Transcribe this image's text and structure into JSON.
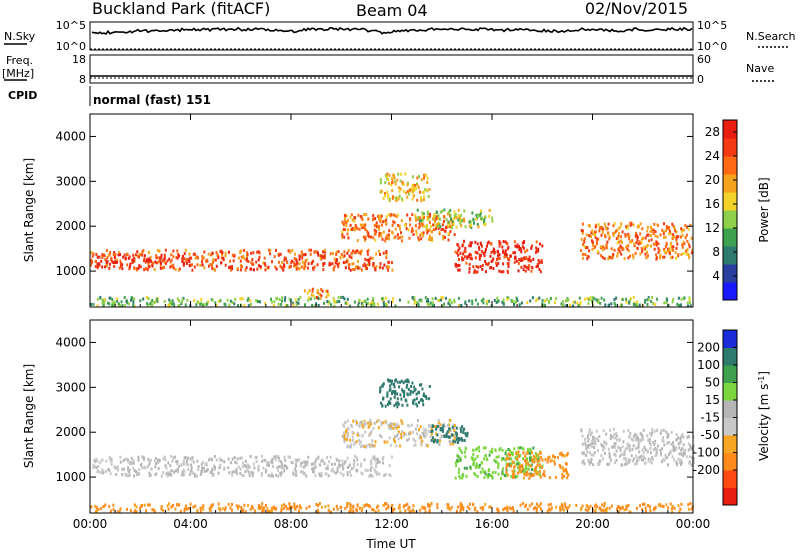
{
  "header": {
    "station": "Buckland Park (fitACF)",
    "beam": "Beam 04",
    "date": "02/Nov/2015"
  },
  "summary_panels": {
    "nsky_label": "N.Sky",
    "nsearch_label": "N.Search",
    "noise_ticks": [
      "10^5",
      "10^0"
    ],
    "freq_label": "Freq.",
    "freq_unit": "[MHz]",
    "freq_ticks": [
      "18",
      "8"
    ],
    "nave_label": "Nave",
    "nave_ticks": [
      "60",
      "0"
    ],
    "cpid_label": "CPID",
    "cpid_value": "normal (fast) 151"
  },
  "colors": {
    "power": [
      "#1a1aff",
      "#2a3f9e",
      "#2e7a6e",
      "#3fa050",
      "#8ed04a",
      "#f2d22b",
      "#f5a21c",
      "#ff6a12",
      "#f43a12",
      "#e81e10"
    ],
    "velocity": [
      "#e81e10",
      "#ff4a12",
      "#ff8c1a",
      "#f5a623",
      "#c8c8c8",
      "#b6b6b6",
      "#7cd640",
      "#3fa050",
      "#2e7a6e",
      "#1b2bd8"
    ]
  },
  "chart_data": [
    {
      "type": "heatmap",
      "quantity": "Power",
      "xlabel": "Time UT",
      "ylabel": "Slant Range [km]",
      "x_ticks": [
        "00:00",
        "04:00",
        "08:00",
        "12:00",
        "16:00",
        "20:00",
        "00:00"
      ],
      "y_ticks": [
        "1000",
        "2000",
        "3000",
        "4000"
      ],
      "y_tick_values": [
        1000,
        2000,
        3000,
        4000
      ],
      "xlim": [
        0,
        24
      ],
      "ylim": [
        200,
        4500
      ],
      "colorbar": {
        "label": "Power [dB]",
        "ticks": [
          "4",
          "8",
          "12",
          "16",
          "20",
          "24",
          "28"
        ],
        "range": [
          0,
          30
        ]
      },
      "echo_regions": [
        {
          "t": [
            0,
            12
          ],
          "range_km": [
            1050,
            1500
          ],
          "level": 24
        },
        {
          "t": [
            0,
            4
          ],
          "range_km": [
            1200,
            1350
          ],
          "level": 28
        },
        {
          "t": [
            10,
            14.5
          ],
          "range_km": [
            1700,
            2300
          ],
          "level": 22
        },
        {
          "t": [
            11.5,
            13.5
          ],
          "range_km": [
            2600,
            3200
          ],
          "level": 18
        },
        {
          "t": [
            14.5,
            18
          ],
          "range_km": [
            1000,
            1700
          ],
          "level": 28
        },
        {
          "t": [
            13,
            16
          ],
          "range_km": [
            2000,
            2400
          ],
          "level": 14
        },
        {
          "t": [
            19.5,
            24
          ],
          "range_km": [
            1300,
            2100
          ],
          "level": 22
        },
        {
          "t": [
            0,
            24
          ],
          "range_km": [
            250,
            450
          ],
          "level": 12
        },
        {
          "t": [
            8.5,
            9.5
          ],
          "range_km": [
            400,
            650
          ],
          "level": 20
        }
      ]
    },
    {
      "type": "heatmap",
      "quantity": "Velocity",
      "xlabel": "Time UT",
      "ylabel": "Slant Range [km]",
      "x_ticks": [
        "00:00",
        "04:00",
        "08:00",
        "12:00",
        "16:00",
        "20:00",
        "00:00"
      ],
      "y_ticks": [
        "1000",
        "2000",
        "3000",
        "4000"
      ],
      "y_tick_values": [
        1000,
        2000,
        3000,
        4000
      ],
      "xlim": [
        0,
        24
      ],
      "ylim": [
        200,
        4500
      ],
      "colorbar": {
        "label": "Velocity [m s^-1]",
        "ticks": [
          "200",
          "100",
          "50",
          "15",
          "-15",
          "-50",
          "-100",
          "-200"
        ]
      },
      "echo_regions": [
        {
          "t": [
            0,
            12
          ],
          "range_km": [
            1050,
            1500
          ],
          "velocity": 0
        },
        {
          "t": [
            10,
            14.5
          ],
          "range_km": [
            1700,
            2300
          ],
          "velocity": -10
        },
        {
          "t": [
            11.5,
            13.5
          ],
          "range_km": [
            2600,
            3200
          ],
          "velocity": 150
        },
        {
          "t": [
            14.5,
            18
          ],
          "range_km": [
            1000,
            1700
          ],
          "velocity": 40
        },
        {
          "t": [
            16.5,
            19
          ],
          "range_km": [
            1000,
            1600
          ],
          "velocity": -60
        },
        {
          "t": [
            13.5,
            15
          ],
          "range_km": [
            1800,
            2200
          ],
          "velocity": 120
        },
        {
          "t": [
            19.5,
            24
          ],
          "range_km": [
            1300,
            2100
          ],
          "velocity": 0
        },
        {
          "t": [
            0,
            24
          ],
          "range_km": [
            250,
            450
          ],
          "velocity": -60
        }
      ]
    }
  ]
}
